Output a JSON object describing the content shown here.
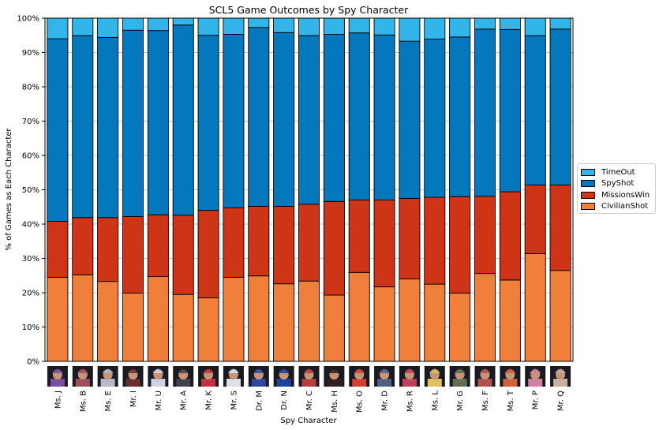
{
  "chart_data": {
    "type": "bar",
    "stacked": true,
    "title": "SCL5 Game Outcomes by Spy Character",
    "xlabel": "Spy Character",
    "ylabel": "% of Games as Each Character",
    "ylim": [
      0,
      100
    ],
    "yticks": [
      "0%",
      "10%",
      "20%",
      "30%",
      "40%",
      "50%",
      "60%",
      "70%",
      "80%",
      "90%",
      "100%"
    ],
    "legend_position": "right",
    "grid": true,
    "categories": [
      "Ms. J",
      "Ms. B",
      "Ms. E",
      "Mr. I",
      "Mr. U",
      "Mr. A",
      "Mr. K",
      "Mr. S",
      "Dr. M",
      "Dr. N",
      "Mr. C",
      "Ms. H",
      "Ms. O",
      "Mr. D",
      "Ms. R",
      "Ms. L",
      "Mr. G",
      "Ms. F",
      "Ms. T",
      "Mr. P",
      "Mr. Q"
    ],
    "series": [
      {
        "name": "CivilianShot",
        "color": "#f07f3c",
        "values": [
          24.5,
          25.2,
          23.3,
          19.9,
          24.7,
          19.5,
          18.5,
          24.5,
          24.9,
          22.6,
          23.4,
          19.3,
          25.9,
          21.7,
          24.0,
          22.5,
          19.9,
          25.6,
          23.7,
          31.4,
          26.5
        ]
      },
      {
        "name": "MissionsWin",
        "color": "#cd3516",
        "values": [
          16.3,
          16.7,
          18.6,
          22.3,
          18.0,
          23.1,
          25.5,
          20.2,
          20.3,
          22.6,
          22.4,
          27.3,
          21.1,
          25.3,
          23.5,
          25.3,
          28.1,
          22.5,
          25.7,
          20.0,
          24.9
        ]
      },
      {
        "name": "SpyShot",
        "color": "#0477bd",
        "values": [
          53.2,
          53.0,
          52.5,
          54.3,
          53.7,
          55.4,
          51.0,
          50.6,
          52.1,
          50.6,
          49.1,
          48.7,
          48.7,
          48.1,
          45.8,
          46.1,
          46.5,
          48.7,
          47.3,
          43.5,
          45.4
        ]
      },
      {
        "name": "TimeOut",
        "color": "#34b5ea",
        "values": [
          6.0,
          5.1,
          5.6,
          3.5,
          3.6,
          2.0,
          5.0,
          4.7,
          2.7,
          4.2,
          5.1,
          4.7,
          4.3,
          4.9,
          6.7,
          6.1,
          5.5,
          3.2,
          3.3,
          5.1,
          3.2
        ]
      }
    ],
    "legend_order": [
      "TimeOut",
      "SpyShot",
      "MissionsWin",
      "CivilianShot"
    ],
    "portrait_colors": [
      "#7a4fa0",
      "#a0505a",
      "#b8b8c8",
      "#6a3030",
      "#d0d0e0",
      "#404048",
      "#c03040",
      "#e0e0e8",
      "#3048a0",
      "#2040a0",
      "#b04040",
      "#302020",
      "#d04030",
      "#506080",
      "#c04060",
      "#e0c060",
      "#607050",
      "#b05050",
      "#d06040",
      "#d080a0",
      "#c8b0a0"
    ]
  }
}
